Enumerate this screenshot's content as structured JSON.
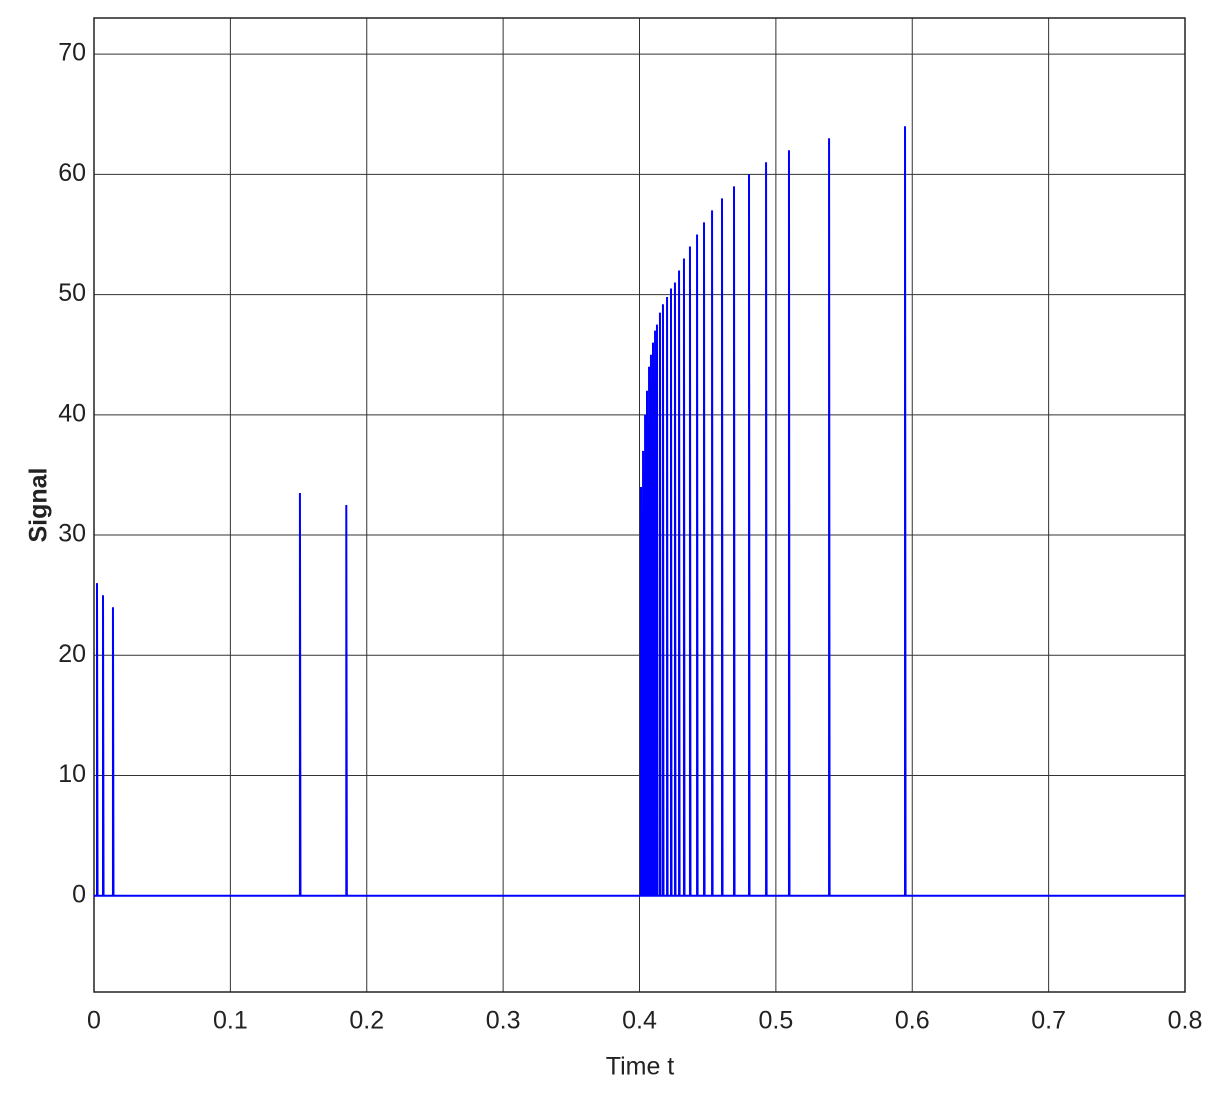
{
  "chart_data": {
    "type": "line",
    "xlabel": "Time t",
    "ylabel": "Signal",
    "x": [
      0,
      0.0022,
      0.0022,
      0.0026,
      0.0066,
      0.0066,
      0.007,
      0.0139,
      0.0139,
      0.0143,
      0.151,
      0.151,
      0.1514,
      0.185,
      0.185,
      0.1854,
      0.4011,
      0.4011,
      0.4015,
      0.4026,
      0.4026,
      0.403,
      0.4041,
      0.4041,
      0.4045,
      0.4055,
      0.4055,
      0.4059,
      0.407,
      0.407,
      0.4074,
      0.4084,
      0.4084,
      0.4088,
      0.4099,
      0.4099,
      0.4103,
      0.4114,
      0.4114,
      0.4118,
      0.4128,
      0.4128,
      0.4132,
      0.415,
      0.415,
      0.4154,
      0.4172,
      0.4172,
      0.4176,
      0.4202,
      0.4202,
      0.4206,
      0.4231,
      0.4231,
      0.4235,
      0.426,
      0.426,
      0.4264,
      0.429,
      0.429,
      0.4294,
      0.4326,
      0.4326,
      0.433,
      0.437,
      0.437,
      0.4374,
      0.4422,
      0.4422,
      0.4426,
      0.4473,
      0.4473,
      0.4477,
      0.4532,
      0.4532,
      0.4536,
      0.4605,
      0.4605,
      0.4609,
      0.4693,
      0.4693,
      0.4697,
      0.4803,
      0.4803,
      0.4807,
      0.4928,
      0.4928,
      0.4932,
      0.5096,
      0.5096,
      0.51,
      0.539,
      0.539,
      0.5394,
      0.5947,
      0.5947,
      0.5951,
      0.8
    ],
    "values": [
      0,
      0,
      26,
      0,
      0,
      25,
      0,
      0,
      24,
      0,
      0,
      33.5,
      0,
      0,
      32.5,
      0,
      0,
      34,
      0,
      0,
      37,
      0,
      0,
      40,
      0,
      0,
      42,
      0,
      0,
      44,
      0,
      0,
      45,
      0,
      0,
      46,
      0,
      0,
      47,
      0,
      0,
      47.5,
      0,
      0,
      48.5,
      0,
      0,
      49.2,
      0,
      0,
      49.8,
      0,
      0,
      50.5,
      0,
      0,
      51,
      0,
      0,
      52,
      0,
      0,
      53,
      0,
      0,
      54,
      0,
      0,
      55,
      0,
      0,
      56,
      0,
      0,
      57,
      0,
      0,
      58,
      0,
      0,
      59,
      0,
      0,
      60,
      0,
      0,
      61,
      0,
      0,
      62,
      0,
      0,
      63,
      0,
      0,
      64,
      0,
      0
    ],
    "color": "#0000ff",
    "xlim": [
      0,
      0.8
    ],
    "xticks": [
      0,
      0.1,
      0.2,
      0.3,
      0.4,
      0.5,
      0.6,
      0.7,
      0.8
    ],
    "ylim": [
      -8,
      73
    ],
    "yticks": [
      0,
      10,
      20,
      30,
      40,
      50,
      60,
      70
    ],
    "grid": true
  }
}
